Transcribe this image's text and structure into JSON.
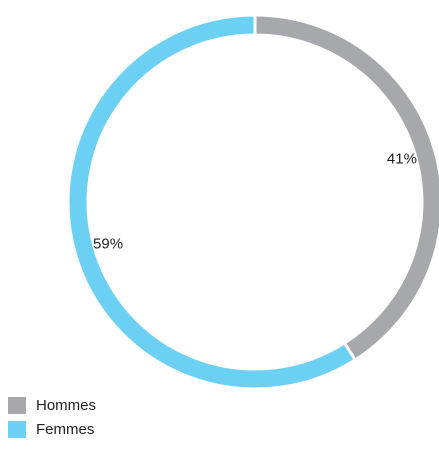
{
  "chart_data": {
    "type": "pie",
    "donut": true,
    "title": "",
    "categories": [
      "Hommes",
      "Femmes"
    ],
    "values": [
      41,
      59
    ],
    "value_labels": [
      "41%",
      "59%"
    ],
    "colors": [
      "#a7a8ab",
      "#6cd0f5"
    ],
    "legend_position": "bottom-left",
    "start_angle": "top",
    "direction": "clockwise"
  },
  "legend": {
    "items": [
      {
        "label": "Hommes",
        "color": "#a7a8ab"
      },
      {
        "label": "Femmes",
        "color": "#6cd0f5"
      }
    ]
  }
}
